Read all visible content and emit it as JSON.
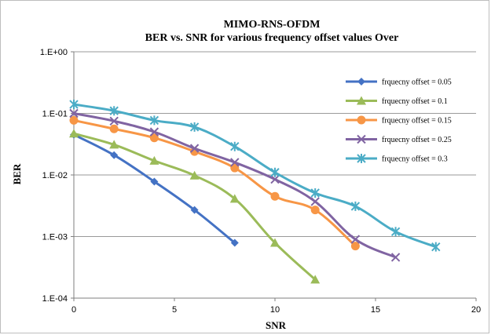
{
  "chart_data": {
    "type": "line",
    "title": "MIMO-RNS-OFDM",
    "subtitle": "BER vs. SNR for various frequency offset values Over",
    "xlabel": "SNR",
    "ylabel": "BER",
    "xlim": [
      0,
      20
    ],
    "ylim": [
      0.0001,
      1
    ],
    "y_scale": "log",
    "grid": true,
    "legend_position": "right",
    "x_ticks": [
      "0",
      "5",
      "10",
      "15",
      "20"
    ],
    "y_ticks": [
      "1.E-04",
      "1.E-03",
      "1.E-02",
      "1.E-01",
      "1.E+00"
    ],
    "series": [
      {
        "name": "frquecny offset = 0.05",
        "color": "#4472c4",
        "marker": "diamond",
        "x": [
          0,
          2,
          4,
          6,
          8
        ],
        "y": [
          0.045,
          0.021,
          0.0078,
          0.0027,
          0.00079
        ]
      },
      {
        "name": "frquecny offset = 0.1",
        "color": "#9bbb59",
        "marker": "triangle",
        "x": [
          0,
          2,
          4,
          6,
          8,
          10,
          12
        ],
        "y": [
          0.047,
          0.031,
          0.017,
          0.0098,
          0.0041,
          0.00079,
          0.0002
        ]
      },
      {
        "name": "frquecny offset = 0.15",
        "color": "#f79646",
        "marker": "circle",
        "x": [
          0,
          2,
          4,
          6,
          8,
          10,
          12,
          14
        ],
        "y": [
          0.077,
          0.056,
          0.04,
          0.024,
          0.013,
          0.0045,
          0.0027,
          0.0007
        ]
      },
      {
        "name": "frquecny offset = 0.25",
        "color": "#8064a2",
        "marker": "x",
        "x": [
          0,
          2,
          4,
          6,
          8,
          10,
          12,
          14,
          16
        ],
        "y": [
          0.1,
          0.075,
          0.05,
          0.027,
          0.016,
          0.0085,
          0.0037,
          0.0009,
          0.00046
        ]
      },
      {
        "name": "frquecny offset = 0.3",
        "color": "#4bacc6",
        "marker": "star",
        "x": [
          0,
          2,
          4,
          6,
          8,
          10,
          12,
          14,
          16,
          18
        ],
        "y": [
          0.14,
          0.11,
          0.077,
          0.06,
          0.029,
          0.011,
          0.0051,
          0.0031,
          0.0012,
          0.00068
        ]
      }
    ]
  }
}
